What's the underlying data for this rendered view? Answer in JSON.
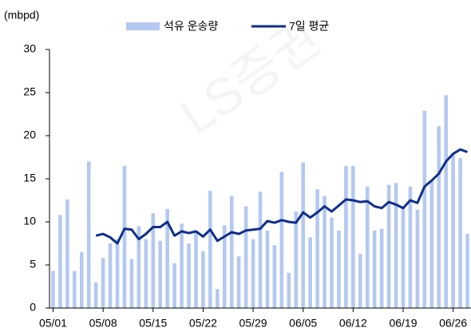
{
  "chart_data": {
    "type": "bar_line",
    "y_label": "(mbpd)",
    "watermark": "LS증권",
    "categories": [
      "05/01",
      null,
      null,
      null,
      null,
      null,
      null,
      "05/08",
      null,
      null,
      null,
      null,
      null,
      null,
      "05/15",
      null,
      null,
      null,
      null,
      null,
      null,
      "05/22",
      null,
      null,
      null,
      null,
      null,
      null,
      "05/29",
      null,
      null,
      null,
      null,
      null,
      null,
      "06/05",
      null,
      null,
      null,
      null,
      null,
      null,
      "06/12",
      null,
      null,
      null,
      null,
      null,
      null,
      "06/19",
      null,
      null,
      null,
      null,
      null,
      null,
      "06/26",
      null,
      null
    ],
    "series": [
      {
        "name": "석유 운송량",
        "color": "#b4c9f0",
        "values": [
          4.3,
          10.8,
          12.6,
          4.3,
          6.5,
          17.0,
          3.0,
          5.8,
          7.5,
          8.0,
          16.5,
          5.7,
          9.5,
          8.0,
          11.0,
          7.8,
          11.5,
          5.2,
          9.8,
          7.5,
          9.0,
          6.6,
          13.6,
          2.2,
          9.6,
          13.0,
          6.0,
          11.8,
          8.0,
          13.5,
          9.0,
          7.3,
          15.8,
          4.1,
          11.2,
          16.9,
          8.2,
          13.8,
          13.0,
          10.5,
          9.0,
          16.5,
          16.5,
          6.3,
          14.1,
          9.0,
          9.2,
          14.3,
          14.5,
          11.8,
          14.1,
          11.4,
          22.9,
          14.8,
          21.1,
          24.7,
          17.8,
          17.4,
          8.6
        ]
      },
      {
        "name": "7일 평균",
        "color": "#0f2e8c",
        "values": [
          null,
          null,
          null,
          null,
          null,
          null,
          8.4,
          8.6,
          8.2,
          7.5,
          9.2,
          9.1,
          8.0,
          8.6,
          9.4,
          9.4,
          10.0,
          8.4,
          8.9,
          8.7,
          8.9,
          8.3,
          9.1,
          7.8,
          8.3,
          8.8,
          8.6,
          9.0,
          9.1,
          9.2,
          10.1,
          9.9,
          10.2,
          10.0,
          9.9,
          11.1,
          10.5,
          11.1,
          11.8,
          11.2,
          11.9,
          12.6,
          12.5,
          12.3,
          12.4,
          11.8,
          11.6,
          12.3,
          12.0,
          11.6,
          12.5,
          12.2,
          14.1,
          14.8,
          15.6,
          17.0,
          17.9,
          18.4,
          18.1
        ]
      }
    ],
    "ylim": [
      0,
      30
    ],
    "yticks": [
      0,
      5,
      10,
      15,
      20,
      25,
      30
    ],
    "grid": false
  }
}
